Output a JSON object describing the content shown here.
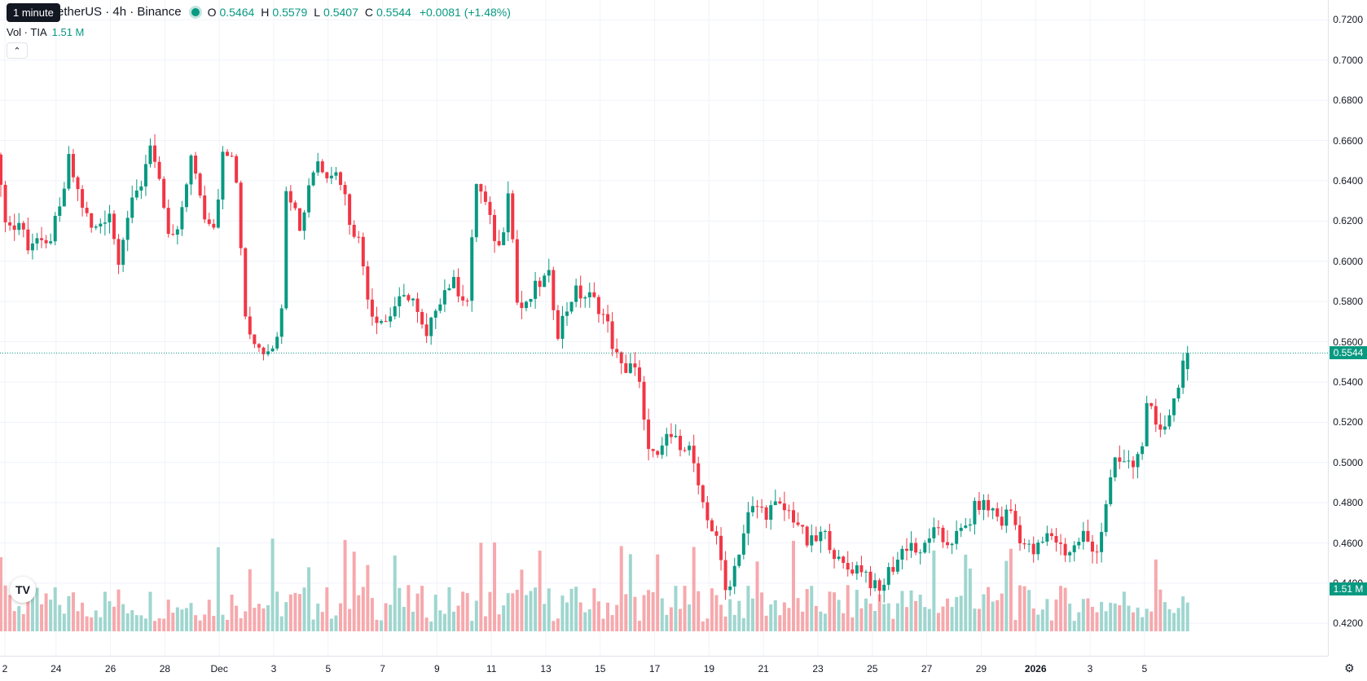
{
  "legend": {
    "symbol": "etherUS · 4h · Binance",
    "o_label": "O",
    "o": "0.5464",
    "h_label": "H",
    "h": "0.5579",
    "l_label": "L",
    "l": "0.5407",
    "c_label": "C",
    "c": "0.5544",
    "change": "+0.0081 (+1.48%)"
  },
  "tooltip": "1 minute",
  "volume_legend": {
    "label": "Vol · TIA",
    "value": "1.51 M"
  },
  "collapse_icon": "chevron-up-icon",
  "price_scale": {
    "labels": [
      "0.7200",
      "0.7000",
      "0.6800",
      "0.6600",
      "0.6400",
      "0.6200",
      "0.6000",
      "0.5800",
      "0.5600",
      "0.5400",
      "0.5200",
      "0.5000",
      "0.4800",
      "0.4600",
      "0.4400",
      "0.4200"
    ],
    "current_price": "0.5544",
    "volume_tag": "1.51 M"
  },
  "time_axis": {
    "labels": [
      "2",
      "24",
      "26",
      "28",
      "Dec",
      "3",
      "5",
      "7",
      "9",
      "11",
      "13",
      "15",
      "17",
      "19",
      "21",
      "23",
      "25",
      "27",
      "29",
      "2026",
      "3",
      "5"
    ],
    "bold": [
      "2026"
    ]
  },
  "colors": {
    "up": "#089981",
    "down": "#f23645",
    "up_vol": "#9fd6cf",
    "down_vol": "#f6a9ad"
  },
  "chart_data": {
    "type": "candlestick",
    "symbol": "etherUS",
    "interval": "4h",
    "exchange": "Binance",
    "ylim": [
      0.41,
      0.725
    ],
    "waypoints": [
      [
        0,
        0.653
      ],
      [
        10,
        0.625
      ],
      [
        20,
        0.615
      ],
      [
        30,
        0.62
      ],
      [
        40,
        0.608
      ],
      [
        50,
        0.612
      ],
      [
        60,
        0.604
      ],
      [
        70,
        0.615
      ],
      [
        80,
        0.626
      ],
      [
        90,
        0.65
      ],
      [
        100,
        0.636
      ],
      [
        110,
        0.624
      ],
      [
        120,
        0.614
      ],
      [
        130,
        0.62
      ],
      [
        140,
        0.625
      ],
      [
        150,
        0.6
      ],
      [
        160,
        0.62
      ],
      [
        170,
        0.63
      ],
      [
        180,
        0.64
      ],
      [
        190,
        0.66
      ],
      [
        200,
        0.64
      ],
      [
        210,
        0.615
      ],
      [
        220,
        0.61
      ],
      [
        230,
        0.625
      ],
      [
        240,
        0.655
      ],
      [
        250,
        0.632
      ],
      [
        260,
        0.618
      ],
      [
        270,
        0.62
      ],
      [
        280,
        0.66
      ],
      [
        290,
        0.65
      ],
      [
        300,
        0.63
      ],
      [
        303,
        0.575
      ],
      [
        310,
        0.565
      ],
      [
        320,
        0.56
      ],
      [
        330,
        0.556
      ],
      [
        340,
        0.56
      ],
      [
        350,
        0.56
      ],
      [
        355,
        0.64
      ],
      [
        365,
        0.63
      ],
      [
        375,
        0.615
      ],
      [
        385,
        0.64
      ],
      [
        395,
        0.65
      ],
      [
        405,
        0.645
      ],
      [
        415,
        0.645
      ],
      [
        425,
        0.64
      ],
      [
        435,
        0.62
      ],
      [
        445,
        0.612
      ],
      [
        455,
        0.59
      ],
      [
        460,
        0.575
      ],
      [
        470,
        0.572
      ],
      [
        480,
        0.57
      ],
      [
        490,
        0.578
      ],
      [
        500,
        0.58
      ],
      [
        510,
        0.585
      ],
      [
        520,
        0.57
      ],
      [
        530,
        0.56
      ],
      [
        540,
        0.578
      ],
      [
        550,
        0.585
      ],
      [
        560,
        0.59
      ],
      [
        570,
        0.585
      ],
      [
        580,
        0.58
      ],
      [
        590,
        0.64
      ],
      [
        600,
        0.63
      ],
      [
        610,
        0.615
      ],
      [
        620,
        0.605
      ],
      [
        630,
        0.64
      ],
      [
        640,
        0.58
      ],
      [
        650,
        0.575
      ],
      [
        660,
        0.585
      ],
      [
        670,
        0.59
      ],
      [
        680,
        0.592
      ],
      [
        690,
        0.565
      ],
      [
        700,
        0.575
      ],
      [
        710,
        0.585
      ],
      [
        720,
        0.583
      ],
      [
        730,
        0.582
      ],
      [
        740,
        0.578
      ],
      [
        750,
        0.57
      ],
      [
        760,
        0.555
      ],
      [
        770,
        0.545
      ],
      [
        780,
        0.55
      ],
      [
        790,
        0.54
      ],
      [
        795,
        0.52
      ],
      [
        805,
        0.505
      ],
      [
        815,
        0.5
      ],
      [
        825,
        0.515
      ],
      [
        835,
        0.51
      ],
      [
        845,
        0.51
      ],
      [
        855,
        0.505
      ],
      [
        865,
        0.48
      ],
      [
        875,
        0.47
      ],
      [
        885,
        0.465
      ],
      [
        895,
        0.435
      ],
      [
        905,
        0.445
      ],
      [
        915,
        0.46
      ],
      [
        925,
        0.475
      ],
      [
        935,
        0.478
      ],
      [
        945,
        0.475
      ],
      [
        955,
        0.478
      ],
      [
        965,
        0.477
      ],
      [
        975,
        0.475
      ],
      [
        985,
        0.47
      ],
      [
        995,
        0.46
      ],
      [
        1005,
        0.46
      ],
      [
        1015,
        0.465
      ],
      [
        1025,
        0.46
      ],
      [
        1035,
        0.45
      ],
      [
        1045,
        0.447
      ],
      [
        1055,
        0.448
      ],
      [
        1065,
        0.448
      ],
      [
        1075,
        0.44
      ],
      [
        1085,
        0.435
      ],
      [
        1095,
        0.445
      ],
      [
        1105,
        0.45
      ],
      [
        1115,
        0.458
      ],
      [
        1125,
        0.46
      ],
      [
        1135,
        0.452
      ],
      [
        1145,
        0.464
      ],
      [
        1155,
        0.465
      ],
      [
        1165,
        0.46
      ],
      [
        1175,
        0.462
      ],
      [
        1185,
        0.465
      ],
      [
        1195,
        0.47
      ],
      [
        1205,
        0.48
      ],
      [
        1215,
        0.478
      ],
      [
        1225,
        0.476
      ],
      [
        1235,
        0.47
      ],
      [
        1245,
        0.478
      ],
      [
        1255,
        0.465
      ],
      [
        1265,
        0.458
      ],
      [
        1275,
        0.455
      ],
      [
        1285,
        0.46
      ],
      [
        1295,
        0.465
      ],
      [
        1305,
        0.46
      ],
      [
        1315,
        0.455
      ],
      [
        1325,
        0.458
      ],
      [
        1335,
        0.465
      ],
      [
        1345,
        0.455
      ],
      [
        1355,
        0.46
      ],
      [
        1365,
        0.485
      ],
      [
        1375,
        0.5
      ],
      [
        1385,
        0.5
      ],
      [
        1395,
        0.498
      ],
      [
        1405,
        0.505
      ],
      [
        1415,
        0.53
      ],
      [
        1425,
        0.515
      ],
      [
        1435,
        0.52
      ],
      [
        1445,
        0.528
      ],
      [
        1450,
        0.537
      ],
      [
        1455,
        0.546
      ],
      [
        1461,
        0.5544
      ]
    ],
    "last_candle": {
      "open": 0.5464,
      "high": 0.5579,
      "low": 0.5407,
      "close": 0.5544
    },
    "last_volume": "1.51 M"
  }
}
